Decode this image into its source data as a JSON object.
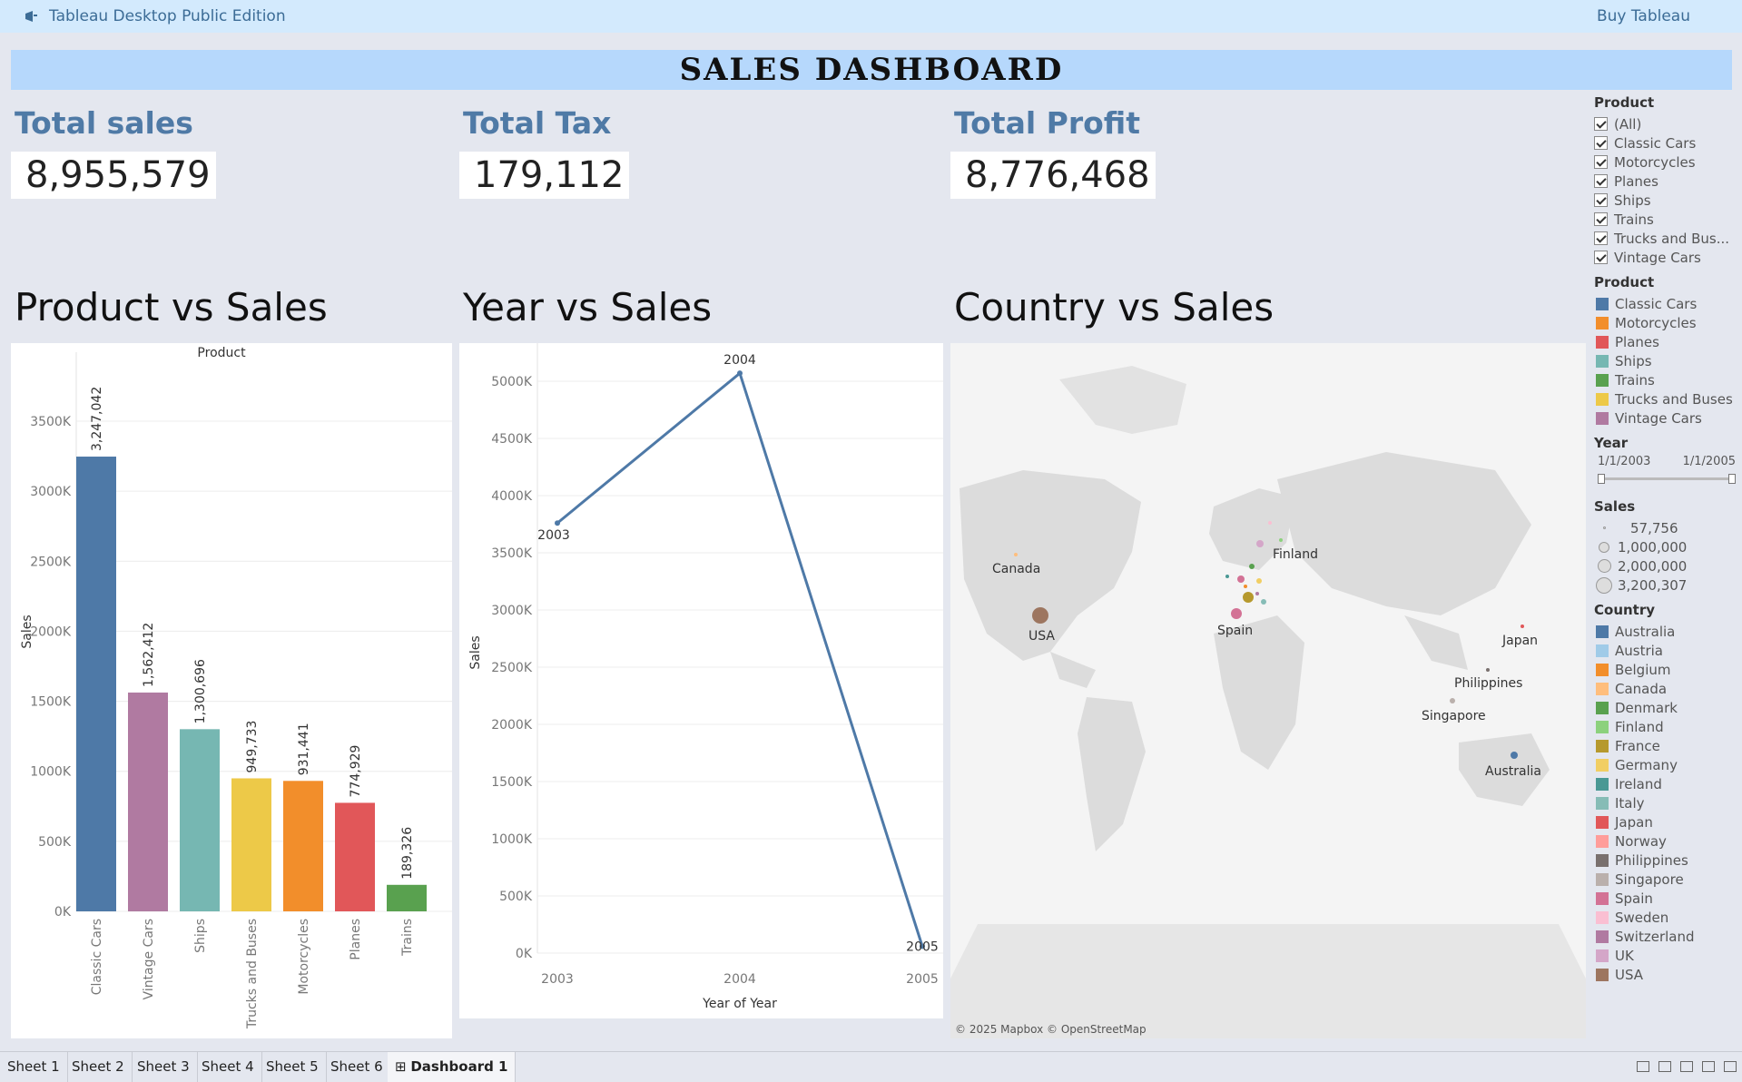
{
  "topbar": {
    "app_title": "Tableau Desktop Public Edition",
    "buy_label": "Buy Tableau",
    "icon": "tableau-logo-icon"
  },
  "banner": {
    "title": "SALES DASHBOARD"
  },
  "kpis": [
    {
      "label": "Total sales",
      "value": "8,955,579"
    },
    {
      "label": "Total Tax",
      "value": "179,112"
    },
    {
      "label": "Total Profit",
      "value": "8,776,468"
    }
  ],
  "sections": {
    "product": "Product vs Sales",
    "year": "Year vs Sales",
    "country": "Country vs Sales"
  },
  "chart_data": [
    {
      "type": "bar",
      "title": "Product",
      "xlabel": "",
      "ylabel": "Sales",
      "categories": [
        "Classic Cars",
        "Vintage Cars",
        "Ships",
        "Trucks and Buses",
        "Motorcycles",
        "Planes",
        "Trains"
      ],
      "values": [
        3247042,
        1562412,
        1300696,
        949733,
        931441,
        774929,
        189326
      ],
      "value_labels": [
        "3,247,042",
        "1,562,412",
        "1,300,696",
        "949,733",
        "931,441",
        "774,929",
        "189,326"
      ],
      "colors": [
        "#4e79a7",
        "#b07aa1",
        "#76b7b2",
        "#edc948",
        "#f28e2b",
        "#e15759",
        "#59a14f"
      ],
      "ylim": [
        0,
        3500000
      ],
      "yticks": [
        0,
        500000,
        1000000,
        1500000,
        2000000,
        2500000,
        3000000,
        3500000
      ],
      "ytick_labels": [
        "0K",
        "500K",
        "1000K",
        "1500K",
        "2000K",
        "2500K",
        "3000K",
        "3500K"
      ],
      "grid": true
    },
    {
      "type": "line",
      "xlabel": "Year of Year",
      "ylabel": "Sales",
      "x": [
        "2003",
        "2004",
        "2005"
      ],
      "y": [
        3760000,
        5070000,
        60000
      ],
      "point_labels": [
        "2003",
        "2004",
        "2005"
      ],
      "color": "#4e79a7",
      "ylim": [
        0,
        5000000
      ],
      "yticks": [
        0,
        500000,
        1000000,
        1500000,
        2000000,
        2500000,
        3000000,
        3500000,
        4000000,
        4500000,
        5000000
      ],
      "ytick_labels": [
        "0K",
        "500K",
        "1000K",
        "1500K",
        "2000K",
        "2500K",
        "3000K",
        "3500K",
        "4000K",
        "4500K",
        "5000K"
      ],
      "grid": true
    }
  ],
  "map": {
    "attribution": "© 2025 Mapbox © OpenStreetMap",
    "labels": [
      "Canada",
      "USA",
      "Finland",
      "Spain",
      "Japan",
      "Philippines",
      "Singapore",
      "Australia"
    ]
  },
  "filters": {
    "product_filter": {
      "header": "Product",
      "items": [
        "(All)",
        "Classic Cars",
        "Motorcycles",
        "Planes",
        "Ships",
        "Trains",
        "Trucks and Bus...",
        "Vintage Cars"
      ]
    },
    "product_legend": {
      "header": "Product",
      "items": [
        {
          "label": "Classic Cars",
          "color": "#4e79a7"
        },
        {
          "label": "Motorcycles",
          "color": "#f28e2b"
        },
        {
          "label": "Planes",
          "color": "#e15759"
        },
        {
          "label": "Ships",
          "color": "#76b7b2"
        },
        {
          "label": "Trains",
          "color": "#59a14f"
        },
        {
          "label": "Trucks and Buses",
          "color": "#edc948"
        },
        {
          "label": "Vintage Cars",
          "color": "#b07aa1"
        }
      ]
    },
    "year": {
      "header": "Year",
      "start": "1/1/2003",
      "end": "1/1/2005"
    },
    "sales_size": {
      "header": "Sales",
      "items": [
        "57,756",
        "1,000,000",
        "2,000,000",
        "3,200,307"
      ]
    },
    "country_legend": {
      "header": "Country",
      "items": [
        {
          "label": "Australia",
          "color": "#4e79a7"
        },
        {
          "label": "Austria",
          "color": "#a0cbe8"
        },
        {
          "label": "Belgium",
          "color": "#f28e2b"
        },
        {
          "label": "Canada",
          "color": "#ffbe7d"
        },
        {
          "label": "Denmark",
          "color": "#59a14f"
        },
        {
          "label": "Finland",
          "color": "#8cd17d"
        },
        {
          "label": "France",
          "color": "#b6992d"
        },
        {
          "label": "Germany",
          "color": "#f1ce63"
        },
        {
          "label": "Ireland",
          "color": "#499894"
        },
        {
          "label": "Italy",
          "color": "#86bcb6"
        },
        {
          "label": "Japan",
          "color": "#e15759"
        },
        {
          "label": "Norway",
          "color": "#ff9d9a"
        },
        {
          "label": "Philippines",
          "color": "#79706e"
        },
        {
          "label": "Singapore",
          "color": "#bab0ac"
        },
        {
          "label": "Spain",
          "color": "#d37295"
        },
        {
          "label": "Sweden",
          "color": "#fabfd2"
        },
        {
          "label": "Switzerland",
          "color": "#b07aa1"
        },
        {
          "label": "UK",
          "color": "#d4a6c8"
        },
        {
          "label": "USA",
          "color": "#9d7660"
        }
      ]
    }
  },
  "tabs": [
    {
      "label": "Sheet 1",
      "active": false
    },
    {
      "label": "Sheet 2",
      "active": false
    },
    {
      "label": "Sheet 3",
      "active": false
    },
    {
      "label": "Sheet 4",
      "active": false
    },
    {
      "label": "Sheet 5",
      "active": false
    },
    {
      "label": "Sheet 6",
      "active": false
    },
    {
      "label": "Dashboard 1",
      "active": true
    }
  ]
}
